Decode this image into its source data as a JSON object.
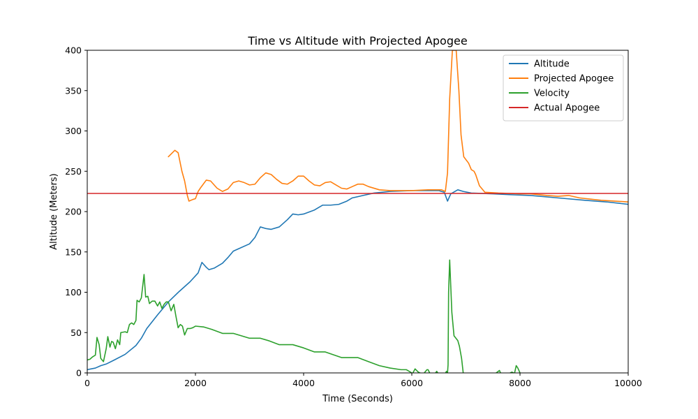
{
  "chart_data": {
    "type": "line",
    "title": "Time vs Altitude with Projected Apogee",
    "xlabel": "Time (Seconds)",
    "ylabel": "Altitude (Meters)",
    "xlim": [
      0,
      10000
    ],
    "ylim": [
      0,
      400
    ],
    "xticks": [
      0,
      2000,
      4000,
      6000,
      8000,
      10000
    ],
    "yticks": [
      0,
      50,
      100,
      150,
      200,
      250,
      300,
      350,
      400
    ],
    "grid": false,
    "legend_position": "top-right",
    "series": [
      {
        "name": "Altitude",
        "color": "#1f77b4",
        "points": [
          [
            0,
            4
          ],
          [
            150,
            6
          ],
          [
            250,
            9
          ],
          [
            350,
            11
          ],
          [
            500,
            16
          ],
          [
            700,
            23
          ],
          [
            900,
            34
          ],
          [
            1000,
            43
          ],
          [
            1100,
            55
          ],
          [
            1300,
            72
          ],
          [
            1500,
            88
          ],
          [
            1700,
            101
          ],
          [
            1900,
            113
          ],
          [
            2050,
            124
          ],
          [
            2120,
            137
          ],
          [
            2200,
            131
          ],
          [
            2250,
            128
          ],
          [
            2350,
            130
          ],
          [
            2500,
            136
          ],
          [
            2600,
            143
          ],
          [
            2700,
            151
          ],
          [
            2800,
            154
          ],
          [
            3000,
            160
          ],
          [
            3100,
            168
          ],
          [
            3200,
            181
          ],
          [
            3300,
            179
          ],
          [
            3400,
            178
          ],
          [
            3550,
            181
          ],
          [
            3700,
            190
          ],
          [
            3800,
            197
          ],
          [
            3900,
            196
          ],
          [
            4000,
            197
          ],
          [
            4200,
            202
          ],
          [
            4350,
            208
          ],
          [
            4500,
            208
          ],
          [
            4650,
            209
          ],
          [
            4800,
            213
          ],
          [
            4900,
            217
          ],
          [
            5100,
            220
          ],
          [
            5300,
            223
          ],
          [
            5600,
            225
          ],
          [
            6000,
            226
          ],
          [
            6500,
            226
          ],
          [
            6600,
            224
          ],
          [
            6660,
            213
          ],
          [
            6720,
            222
          ],
          [
            6850,
            227
          ],
          [
            6950,
            225
          ],
          [
            7100,
            223
          ],
          [
            7500,
            222
          ],
          [
            7800,
            221
          ],
          [
            8200,
            220
          ],
          [
            8700,
            217
          ],
          [
            9200,
            214
          ],
          [
            9600,
            212
          ],
          [
            10000,
            209
          ]
        ]
      },
      {
        "name": "Projected Apogee",
        "color": "#ff7f0e",
        "points": [
          [
            1500,
            268
          ],
          [
            1560,
            272
          ],
          [
            1620,
            276
          ],
          [
            1680,
            273
          ],
          [
            1750,
            250
          ],
          [
            1800,
            238
          ],
          [
            1850,
            220
          ],
          [
            1880,
            213
          ],
          [
            1950,
            215
          ],
          [
            2000,
            216
          ],
          [
            2050,
            225
          ],
          [
            2100,
            230
          ],
          [
            2200,
            239
          ],
          [
            2280,
            238
          ],
          [
            2400,
            229
          ],
          [
            2500,
            225
          ],
          [
            2600,
            228
          ],
          [
            2700,
            236
          ],
          [
            2800,
            238
          ],
          [
            2900,
            236
          ],
          [
            3000,
            233
          ],
          [
            3100,
            234
          ],
          [
            3200,
            242
          ],
          [
            3300,
            248
          ],
          [
            3400,
            246
          ],
          [
            3500,
            240
          ],
          [
            3600,
            235
          ],
          [
            3700,
            234
          ],
          [
            3800,
            238
          ],
          [
            3900,
            244
          ],
          [
            4000,
            244
          ],
          [
            4100,
            238
          ],
          [
            4200,
            233
          ],
          [
            4300,
            232
          ],
          [
            4400,
            236
          ],
          [
            4500,
            237
          ],
          [
            4600,
            233
          ],
          [
            4700,
            229
          ],
          [
            4800,
            228
          ],
          [
            4900,
            231
          ],
          [
            5000,
            234
          ],
          [
            5100,
            234
          ],
          [
            5200,
            231
          ],
          [
            5400,
            227
          ],
          [
            5600,
            226
          ],
          [
            6000,
            226
          ],
          [
            6300,
            227
          ],
          [
            6550,
            227
          ],
          [
            6620,
            225
          ],
          [
            6660,
            248
          ],
          [
            6700,
            340
          ],
          [
            6750,
            400
          ],
          [
            6820,
            400
          ],
          [
            6870,
            350
          ],
          [
            6910,
            295
          ],
          [
            6960,
            268
          ],
          [
            7050,
            260
          ],
          [
            7100,
            252
          ],
          [
            7150,
            250
          ],
          [
            7180,
            246
          ],
          [
            7250,
            232
          ],
          [
            7350,
            224
          ],
          [
            7600,
            223
          ],
          [
            8000,
            222
          ],
          [
            8200,
            222
          ],
          [
            8500,
            220
          ],
          [
            8700,
            219
          ],
          [
            8900,
            220
          ],
          [
            9100,
            217
          ],
          [
            9500,
            214
          ],
          [
            10000,
            212
          ]
        ]
      },
      {
        "name": "Velocity",
        "color": "#2ca02c",
        "points": [
          [
            0,
            16
          ],
          [
            50,
            17
          ],
          [
            100,
            20
          ],
          [
            150,
            22
          ],
          [
            180,
            44
          ],
          [
            220,
            35
          ],
          [
            250,
            18
          ],
          [
            300,
            14
          ],
          [
            350,
            30
          ],
          [
            380,
            45
          ],
          [
            420,
            32
          ],
          [
            450,
            39
          ],
          [
            480,
            38
          ],
          [
            520,
            30
          ],
          [
            560,
            41
          ],
          [
            600,
            35
          ],
          [
            620,
            50
          ],
          [
            700,
            51
          ],
          [
            740,
            50
          ],
          [
            780,
            60
          ],
          [
            820,
            62
          ],
          [
            860,
            60
          ],
          [
            900,
            65
          ],
          [
            920,
            90
          ],
          [
            960,
            88
          ],
          [
            1000,
            93
          ],
          [
            1050,
            122
          ],
          [
            1080,
            94
          ],
          [
            1120,
            95
          ],
          [
            1150,
            86
          ],
          [
            1200,
            89
          ],
          [
            1250,
            89
          ],
          [
            1300,
            83
          ],
          [
            1340,
            88
          ],
          [
            1380,
            80
          ],
          [
            1420,
            85
          ],
          [
            1460,
            88
          ],
          [
            1500,
            88
          ],
          [
            1550,
            77
          ],
          [
            1600,
            85
          ],
          [
            1640,
            70
          ],
          [
            1680,
            56
          ],
          [
            1720,
            60
          ],
          [
            1760,
            58
          ],
          [
            1800,
            47
          ],
          [
            1850,
            55
          ],
          [
            1900,
            55
          ],
          [
            1950,
            56
          ],
          [
            2000,
            58
          ],
          [
            2150,
            57
          ],
          [
            2300,
            54
          ],
          [
            2500,
            49
          ],
          [
            2700,
            49
          ],
          [
            3000,
            43
          ],
          [
            3200,
            43
          ],
          [
            3350,
            40
          ],
          [
            3550,
            35
          ],
          [
            3800,
            35
          ],
          [
            4000,
            31
          ],
          [
            4200,
            26
          ],
          [
            4400,
            26
          ],
          [
            4700,
            19
          ],
          [
            5000,
            19
          ],
          [
            5200,
            14
          ],
          [
            5400,
            9
          ],
          [
            5600,
            6
          ],
          [
            5800,
            4
          ],
          [
            5900,
            4
          ],
          [
            5950,
            2
          ],
          [
            6000,
            0
          ]
        ]
      },
      {
        "name": "Velocity",
        "color": "#2ca02c",
        "points": [
          [
            6020,
            0
          ],
          [
            6060,
            5
          ],
          [
            6090,
            3
          ],
          [
            6120,
            1
          ],
          [
            6150,
            0
          ]
        ]
      },
      {
        "name": "Velocity",
        "color": "#2ca02c",
        "points": [
          [
            6230,
            0
          ],
          [
            6280,
            4
          ],
          [
            6300,
            4
          ],
          [
            6330,
            0
          ]
        ]
      },
      {
        "name": "Velocity",
        "color": "#2ca02c",
        "points": [
          [
            6440,
            0
          ],
          [
            6460,
            2
          ],
          [
            6480,
            0
          ]
        ]
      },
      {
        "name": "Velocity",
        "color": "#2ca02c",
        "points": [
          [
            6625,
            0
          ],
          [
            6640,
            2
          ],
          [
            6660,
            0
          ],
          [
            6670,
            10
          ],
          [
            6680,
            100
          ],
          [
            6700,
            140
          ],
          [
            6740,
            75
          ],
          [
            6780,
            46
          ],
          [
            6850,
            40
          ],
          [
            6880,
            33
          ],
          [
            6920,
            18
          ],
          [
            6950,
            0
          ]
        ]
      },
      {
        "name": "Velocity",
        "color": "#2ca02c",
        "points": [
          [
            7560,
            0
          ],
          [
            7600,
            2
          ],
          [
            7620,
            3
          ],
          [
            7640,
            0
          ]
        ]
      },
      {
        "name": "Velocity",
        "color": "#2ca02c",
        "points": [
          [
            7820,
            0
          ],
          [
            7850,
            1
          ],
          [
            7880,
            0
          ]
        ]
      },
      {
        "name": "Velocity",
        "color": "#2ca02c",
        "points": [
          [
            7900,
            0
          ],
          [
            7930,
            9
          ],
          [
            7960,
            6
          ],
          [
            8000,
            0
          ]
        ]
      },
      {
        "name": "Actual Apogee",
        "color": "#d62728",
        "points": [
          [
            0,
            222.5
          ],
          [
            10000,
            222.5
          ]
        ]
      }
    ],
    "legend": [
      {
        "label": "Altitude",
        "color": "#1f77b4"
      },
      {
        "label": "Projected Apogee",
        "color": "#ff7f0e"
      },
      {
        "label": "Velocity",
        "color": "#2ca02c"
      },
      {
        "label": "Actual Apogee",
        "color": "#d62728"
      }
    ]
  }
}
